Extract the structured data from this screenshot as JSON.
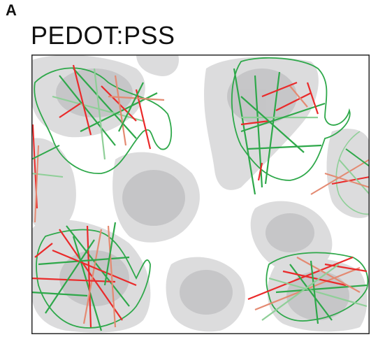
{
  "figure": {
    "panel_label": "A",
    "title": "PEDOT:PSS"
  },
  "colors": {
    "background": "#ffffff",
    "border": "#2a2a2a",
    "blob_light": "#dcdcdd",
    "blob_dark": "#c3c3c5",
    "fiber_green": "#2ea84a",
    "fiber_light_green": "#8fcf98",
    "fiber_red": "#ea2a2a",
    "fiber_salmon": "#e48a72"
  }
}
